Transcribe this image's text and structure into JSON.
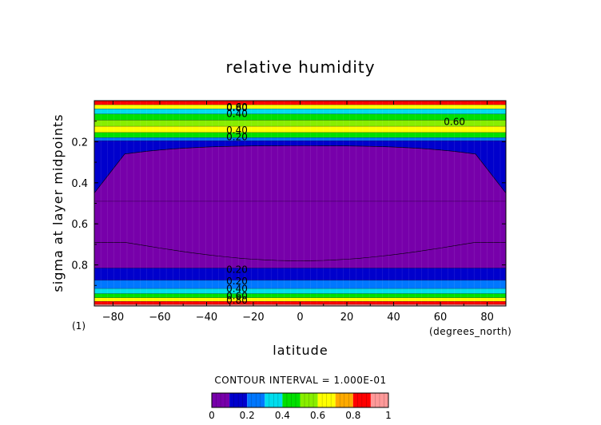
{
  "chart_data": {
    "type": "heatmap",
    "title": "relative humidity",
    "xlabel": "latitude",
    "xunits": "(degrees_north)",
    "ylabel": "sigma at layer midpoints",
    "panel_label": "(1)",
    "xlim": [
      -88,
      88
    ],
    "ylim": [
      1.0,
      0.0
    ],
    "x_ticks": [
      -80,
      -60,
      -40,
      -20,
      0,
      20,
      40,
      60,
      80
    ],
    "y_ticks": [
      0.2,
      0.4,
      0.6,
      0.8
    ],
    "contour_interval_text": "CONTOUR INTERVAL = 1.000E-01",
    "colorbar": {
      "levels": [
        0,
        0.1,
        0.2,
        0.3,
        0.4,
        0.5,
        0.6,
        0.7,
        0.8,
        0.9,
        1.0
      ],
      "tick_labels": [
        "0",
        "0.2",
        "0.4",
        "0.6",
        "0.8",
        "1"
      ],
      "colors": [
        "#7700aa",
        "#0000cc",
        "#0077ff",
        "#00ddee",
        "#00e000",
        "#88ee00",
        "#ffff00",
        "#ffaa00",
        "#ff0000",
        "#ff9999"
      ]
    },
    "contour_labels": [
      "0.80",
      "0.60",
      "0.40",
      "0.20",
      "0.40",
      "0.20",
      "0.60",
      "0.20",
      "0.40",
      "0.60",
      "0.80"
    ],
    "vertical_profile": [
      {
        "sigma": 0.01,
        "value": 0.85
      },
      {
        "sigma": 0.03,
        "value": 0.65
      },
      {
        "sigma": 0.05,
        "value": 0.35
      },
      {
        "sigma": 0.08,
        "value": 0.45
      },
      {
        "sigma": 0.11,
        "value": 0.55
      },
      {
        "sigma": 0.14,
        "value": 0.65
      },
      {
        "sigma": 0.17,
        "value": 0.45
      },
      {
        "sigma": 0.19,
        "value": 0.25
      },
      {
        "sigma": 0.2,
        "value": 0.15
      },
      {
        "sigma": 0.78,
        "value": 0.05
      },
      {
        "sigma": 0.85,
        "value": 0.15
      },
      {
        "sigma": 0.9,
        "value": 0.25
      },
      {
        "sigma": 0.93,
        "value": 0.35
      },
      {
        "sigma": 0.95,
        "value": 0.45
      },
      {
        "sigma": 0.97,
        "value": 0.65
      },
      {
        "sigma": 0.985,
        "value": 0.85
      },
      {
        "sigma": 1.0,
        "value": 0.95
      }
    ],
    "dry_core": {
      "value_max": 0.1,
      "top_sigma": 0.22,
      "bottom_sigma_equator": 0.78,
      "bottom_sigma_midlat": 0.69,
      "poleward_extent_deg": 75
    }
  }
}
